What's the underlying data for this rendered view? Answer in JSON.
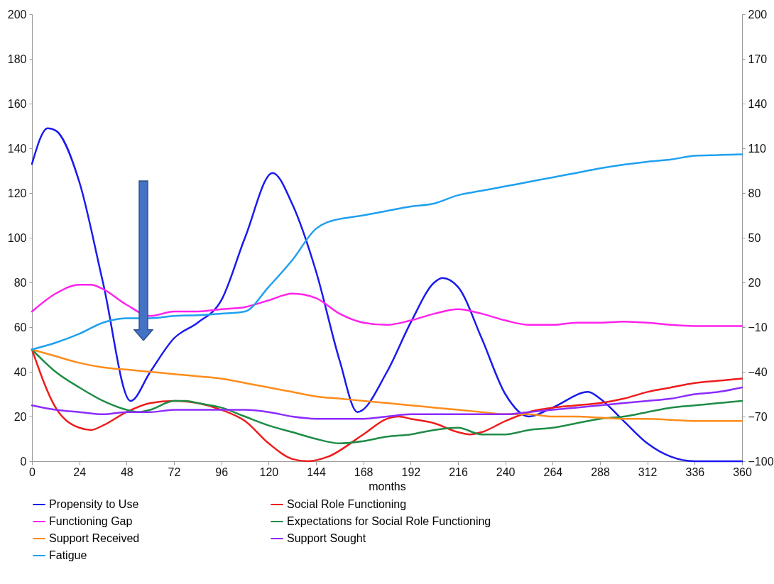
{
  "chart_data": {
    "type": "line",
    "xlabel": "months",
    "xlim": [
      0,
      360
    ],
    "xticks": [
      0,
      24,
      48,
      72,
      96,
      120,
      144,
      168,
      192,
      216,
      240,
      264,
      288,
      312,
      336,
      360
    ],
    "ylim": [
      0,
      200
    ],
    "yticks": [
      0,
      20,
      40,
      60,
      80,
      100,
      120,
      140,
      160,
      180,
      200
    ],
    "y2lim": [
      -100,
      200
    ],
    "y2ticks": [
      -100,
      -70,
      -40,
      -10,
      20,
      50,
      80,
      110,
      140,
      170,
      200
    ],
    "legend": "bottom",
    "series": [
      {
        "name": "Propensity to Use",
        "color": "#1a1aee",
        "x": [
          0,
          8,
          12,
          24,
          36,
          50,
          60,
          72,
          84,
          96,
          108,
          122,
          132,
          144,
          156,
          165,
          180,
          192,
          204,
          208,
          216,
          228,
          240,
          252,
          264,
          282,
          288,
          300,
          312,
          324,
          336,
          348,
          360
        ],
        "values": [
          133,
          149,
          148,
          125,
          80,
          27,
          40,
          55,
          62,
          72,
          100,
          129,
          115,
          85,
          45,
          22,
          40,
          62,
          80,
          82,
          78,
          55,
          30,
          20,
          24,
          31,
          28,
          18,
          8,
          2,
          0,
          0,
          0
        ]
      },
      {
        "name": "Social Role Functioning",
        "color": "#ee1c1c",
        "x": [
          0,
          12,
          24,
          30,
          36,
          48,
          60,
          72,
          84,
          96,
          108,
          120,
          132,
          140,
          150,
          168,
          180,
          186,
          192,
          204,
          216,
          222,
          228,
          240,
          252,
          264,
          276,
          288,
          300,
          312,
          324,
          336,
          348,
          360
        ],
        "values": [
          50,
          24,
          15,
          14,
          16,
          22,
          26,
          27,
          26,
          23,
          18,
          8,
          1,
          0,
          2,
          12,
          19,
          20,
          19,
          17,
          13,
          12,
          13,
          18,
          22,
          24,
          25,
          26,
          28,
          31,
          33,
          35,
          36,
          37
        ]
      },
      {
        "name": "Functioning Gap",
        "color": "#ff22ee",
        "x": [
          0,
          12,
          24,
          30,
          36,
          48,
          60,
          72,
          84,
          96,
          108,
          120,
          132,
          144,
          156,
          168,
          180,
          192,
          204,
          216,
          228,
          240,
          252,
          264,
          276,
          288,
          300,
          312,
          324,
          336,
          360
        ],
        "values": [
          67,
          75,
          79,
          79,
          77,
          70,
          65,
          67,
          67,
          68,
          69,
          72,
          75,
          73,
          66,
          62,
          61,
          63,
          66,
          68,
          66,
          63,
          61,
          61,
          62,
          62,
          62.5,
          62,
          61,
          60.5,
          60.5
        ]
      },
      {
        "name": "Expectations for Social Role Functioning",
        "color": "#1e8c46",
        "x": [
          0,
          12,
          24,
          36,
          48,
          54,
          60,
          72,
          78,
          84,
          96,
          108,
          120,
          132,
          144,
          156,
          168,
          180,
          192,
          204,
          216,
          228,
          240,
          252,
          264,
          276,
          288,
          300,
          312,
          324,
          336,
          348,
          360
        ],
        "values": [
          50,
          40,
          33,
          27,
          23,
          22,
          23,
          27,
          27,
          26,
          24,
          20,
          16,
          13,
          10,
          8,
          9,
          11,
          12,
          14,
          15,
          12,
          12,
          14,
          15,
          17,
          19,
          20,
          22,
          24,
          25,
          26,
          27
        ]
      },
      {
        "name": "Support Received",
        "color": "#ff8c1a",
        "x": [
          0,
          12,
          24,
          36,
          48,
          60,
          72,
          84,
          96,
          108,
          120,
          132,
          144,
          156,
          168,
          180,
          192,
          204,
          216,
          228,
          240,
          252,
          264,
          276,
          288,
          300,
          312,
          324,
          336,
          360
        ],
        "values": [
          50,
          47,
          44,
          42,
          41,
          40,
          39,
          38,
          37,
          35,
          33,
          31,
          29,
          28,
          27,
          26,
          25,
          24,
          23,
          22,
          21,
          21,
          20,
          20,
          19.5,
          19,
          19,
          18.5,
          18,
          18
        ]
      },
      {
        "name": "Support Sought",
        "color": "#8c2cff",
        "x": [
          0,
          12,
          24,
          36,
          48,
          60,
          72,
          84,
          96,
          108,
          120,
          132,
          144,
          156,
          168,
          180,
          192,
          204,
          216,
          228,
          240,
          252,
          264,
          276,
          288,
          300,
          312,
          324,
          336,
          348,
          360
        ],
        "values": [
          25,
          23,
          22,
          21,
          22,
          22,
          23,
          23,
          23,
          23,
          22,
          20,
          19,
          19,
          19,
          20,
          21,
          21,
          21,
          21,
          21,
          22,
          23,
          24,
          25,
          26,
          27,
          28,
          30,
          31,
          33
        ]
      },
      {
        "name": "Fatigue",
        "color": "#1ea0f0",
        "axis": "y2",
        "x": [
          0,
          12,
          24,
          36,
          40,
          48,
          60,
          72,
          84,
          96,
          108,
          120,
          132,
          144,
          150,
          168,
          180,
          192,
          204,
          216,
          228,
          240,
          252,
          264,
          276,
          288,
          300,
          312,
          324,
          336,
          348,
          360
        ],
        "values": [
          -25,
          -20.5,
          -14.5,
          -7,
          -5.5,
          -4,
          -4,
          -2.5,
          -2,
          -1,
          0.5,
          17,
          35,
          56,
          60.5,
          65,
          68,
          71,
          73,
          78.5,
          81.5,
          84.5,
          87.5,
          90.5,
          93.5,
          96.5,
          99,
          101,
          102.5,
          105,
          105.5,
          106
        ]
      }
    ]
  }
}
